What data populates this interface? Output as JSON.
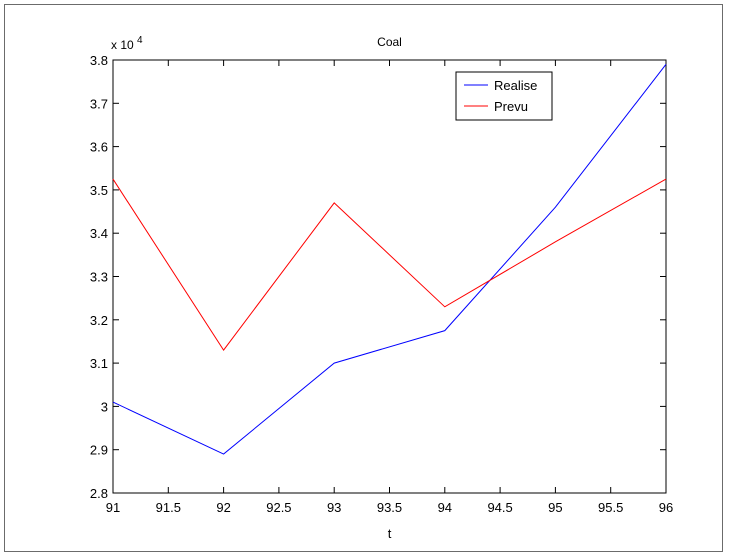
{
  "chart_data": {
    "type": "line",
    "title": "Coal",
    "xlabel": "t",
    "ylabel": "",
    "y_exponent_label": "x 10",
    "y_exponent_power": "4",
    "xlim": [
      91,
      96
    ],
    "ylim": [
      2.8,
      3.8
    ],
    "x_ticks": [
      "91",
      "91.5",
      "92",
      "92.5",
      "93",
      "93.5",
      "94",
      "94.5",
      "95",
      "95.5",
      "96"
    ],
    "y_ticks": [
      "2.8",
      "2.9",
      "3",
      "3.1",
      "3.2",
      "3.3",
      "3.4",
      "3.5",
      "3.6",
      "3.7",
      "3.8"
    ],
    "x": [
      91,
      92,
      93,
      94,
      95,
      96
    ],
    "series": [
      {
        "name": "Realise",
        "color": "#0000ff",
        "values": [
          3.01,
          2.89,
          3.1,
          3.175,
          3.46,
          3.79
        ]
      },
      {
        "name": "Prevu",
        "color": "#ff0000",
        "values": [
          3.525,
          3.13,
          3.47,
          3.23,
          3.38,
          3.525
        ]
      }
    ],
    "legend_position": "top-right",
    "grid": false
  }
}
